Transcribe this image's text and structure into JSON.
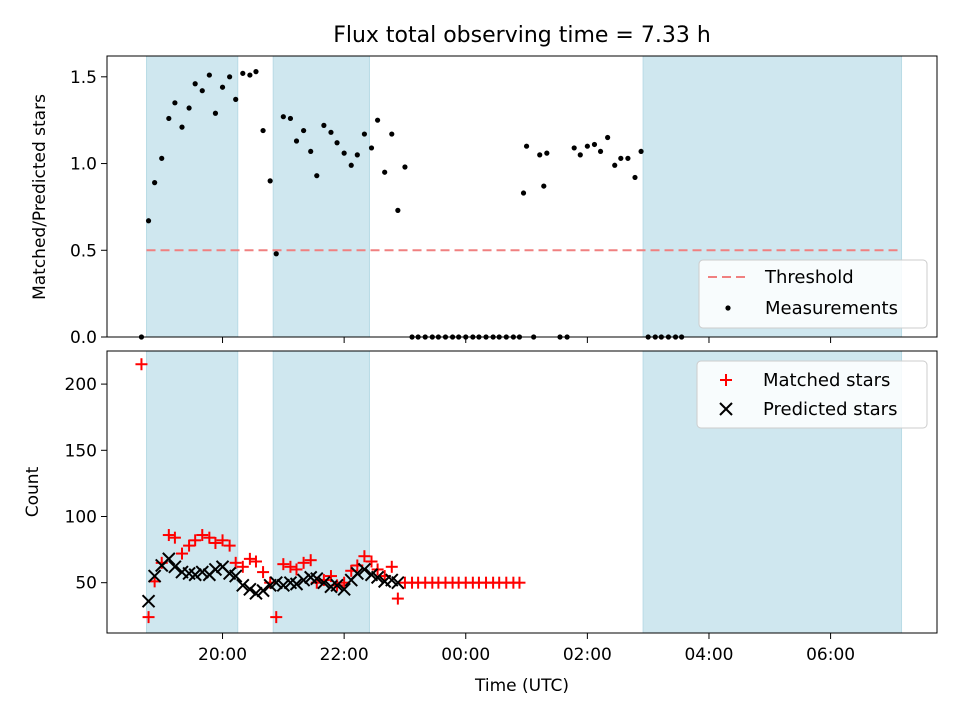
{
  "chart_data": {
    "title": "Flux total observing time = 7.33 h",
    "x_axis": {
      "label": "Time (UTC)",
      "range_hours_utc": [
        18.1,
        7.75
      ],
      "ticks": [
        "20:00",
        "22:00",
        "00:00",
        "02:00",
        "04:00",
        "06:00"
      ]
    },
    "observing_windows_utc": [
      [
        "18:45",
        "20:15"
      ],
      [
        "20:50",
        "22:25"
      ],
      [
        "02:55",
        "07:10"
      ]
    ],
    "window_color": "#cfe7ef",
    "panels": [
      {
        "type": "scatter",
        "ylabel": "Matched/Predicted stars",
        "ylim": [
          0,
          1.62
        ],
        "yticks": [
          "0.0",
          "0.5",
          "1.0",
          "1.5"
        ],
        "threshold": 0.5,
        "legend": {
          "position": "lower-right",
          "entries": [
            {
              "label": "Threshold",
              "style": "dashed-line",
              "color": "#f08080"
            },
            {
              "label": "Measurements",
              "style": "dot",
              "color": "#000000"
            }
          ]
        },
        "series": [
          {
            "name": "Measurements",
            "color": "#000000",
            "points": [
              [
                "18:40",
                0.0
              ],
              [
                "18:47",
                0.67
              ],
              [
                "18:53",
                0.89
              ],
              [
                "19:00",
                1.03
              ],
              [
                "19:07",
                1.26
              ],
              [
                "19:13",
                1.35
              ],
              [
                "19:20",
                1.21
              ],
              [
                "19:27",
                1.32
              ],
              [
                "19:33",
                1.46
              ],
              [
                "19:40",
                1.42
              ],
              [
                "19:47",
                1.51
              ],
              [
                "19:53",
                1.29
              ],
              [
                "20:00",
                1.44
              ],
              [
                "20:07",
                1.5
              ],
              [
                "20:13",
                1.37
              ],
              [
                "20:20",
                1.52
              ],
              [
                "20:27",
                1.51
              ],
              [
                "20:33",
                1.53
              ],
              [
                "20:40",
                1.19
              ],
              [
                "20:47",
                0.9
              ],
              [
                "20:53",
                0.48
              ],
              [
                "21:00",
                1.27
              ],
              [
                "21:07",
                1.26
              ],
              [
                "21:13",
                1.13
              ],
              [
                "21:20",
                1.19
              ],
              [
                "21:27",
                1.07
              ],
              [
                "21:33",
                0.93
              ],
              [
                "21:40",
                1.22
              ],
              [
                "21:47",
                1.18
              ],
              [
                "21:53",
                1.12
              ],
              [
                "22:00",
                1.06
              ],
              [
                "22:07",
                0.99
              ],
              [
                "22:13",
                1.05
              ],
              [
                "22:20",
                1.17
              ],
              [
                "22:27",
                1.09
              ],
              [
                "22:33",
                1.25
              ],
              [
                "22:40",
                0.95
              ],
              [
                "22:47",
                1.17
              ],
              [
                "22:53",
                0.73
              ],
              [
                "23:00",
                0.98
              ],
              [
                "23:07",
                0.0
              ],
              [
                "23:13",
                0.0
              ],
              [
                "23:20",
                0.0
              ],
              [
                "23:27",
                0.0
              ],
              [
                "23:33",
                0.0
              ],
              [
                "23:40",
                0.0
              ],
              [
                "23:47",
                0.0
              ],
              [
                "23:53",
                0.0
              ],
              [
                "00:00",
                0.0
              ],
              [
                "00:07",
                0.0
              ],
              [
                "00:13",
                0.0
              ],
              [
                "00:20",
                0.0
              ],
              [
                "00:27",
                0.0
              ],
              [
                "00:33",
                0.0
              ],
              [
                "00:40",
                0.0
              ],
              [
                "00:47",
                0.0
              ],
              [
                "00:53",
                0.0
              ],
              [
                "00:57",
                0.83
              ],
              [
                "01:00",
                1.1
              ],
              [
                "01:07",
                0.0
              ],
              [
                "01:13",
                1.05
              ],
              [
                "01:17",
                0.87
              ],
              [
                "01:20",
                1.06
              ],
              [
                "01:33",
                0.0
              ],
              [
                "01:40",
                0.0
              ],
              [
                "01:47",
                1.09
              ],
              [
                "01:53",
                1.05
              ],
              [
                "02:00",
                1.1
              ],
              [
                "02:07",
                1.11
              ],
              [
                "02:13",
                1.07
              ],
              [
                "02:20",
                1.15
              ],
              [
                "02:27",
                0.99
              ],
              [
                "02:33",
                1.03
              ],
              [
                "02:40",
                1.03
              ],
              [
                "02:47",
                0.92
              ],
              [
                "02:53",
                1.07
              ],
              [
                "03:00",
                0.0
              ],
              [
                "03:07",
                0.0
              ],
              [
                "03:13",
                0.0
              ],
              [
                "03:20",
                0.0
              ],
              [
                "03:27",
                0.0
              ],
              [
                "03:33",
                0.0
              ]
            ]
          }
        ]
      },
      {
        "type": "scatter",
        "ylabel": "Count",
        "ylim": [
          12,
          225
        ],
        "yticks": [
          "50",
          "100",
          "150",
          "200"
        ],
        "legend": {
          "position": "upper-right",
          "entries": [
            {
              "label": "Matched stars",
              "marker": "+",
              "color": "#ff0000"
            },
            {
              "label": "Predicted stars",
              "marker": "x",
              "color": "#000000"
            }
          ]
        },
        "series": [
          {
            "name": "Matched stars",
            "marker": "+",
            "color": "#ff0000",
            "points": [
              [
                "18:40",
                215
              ],
              [
                "18:47",
                24
              ],
              [
                "18:53",
                51
              ],
              [
                "19:00",
                65
              ],
              [
                "19:07",
                86
              ],
              [
                "19:13",
                84
              ],
              [
                "19:20",
                72
              ],
              [
                "19:27",
                78
              ],
              [
                "19:33",
                82
              ],
              [
                "19:40",
                86
              ],
              [
                "19:47",
                84
              ],
              [
                "19:53",
                80
              ],
              [
                "20:00",
                82
              ],
              [
                "20:07",
                78
              ],
              [
                "20:13",
                65
              ],
              [
                "20:20",
                62
              ],
              [
                "20:27",
                68
              ],
              [
                "20:33",
                66
              ],
              [
                "20:40",
                58
              ],
              [
                "20:47",
                50
              ],
              [
                "20:53",
                24
              ],
              [
                "21:00",
                64
              ],
              [
                "21:07",
                62
              ],
              [
                "21:13",
                60
              ],
              [
                "21:20",
                65
              ],
              [
                "21:27",
                67
              ],
              [
                "21:33",
                50
              ],
              [
                "21:40",
                52
              ],
              [
                "21:47",
                55
              ],
              [
                "21:53",
                48
              ],
              [
                "22:00",
                50
              ],
              [
                "22:07",
                59
              ],
              [
                "22:13",
                63
              ],
              [
                "22:20",
                70
              ],
              [
                "22:27",
                66
              ],
              [
                "22:33",
                60
              ],
              [
                "22:40",
                55
              ],
              [
                "22:47",
                62
              ],
              [
                "22:53",
                38
              ],
              [
                "23:00",
                50
              ],
              [
                "23:07",
                50
              ],
              [
                "23:13",
                50
              ],
              [
                "23:20",
                50
              ],
              [
                "23:27",
                50
              ],
              [
                "23:33",
                50
              ],
              [
                "23:40",
                50
              ],
              [
                "23:47",
                50
              ],
              [
                "23:53",
                50
              ],
              [
                "00:00",
                50
              ],
              [
                "00:07",
                50
              ],
              [
                "00:13",
                50
              ],
              [
                "00:20",
                50
              ],
              [
                "00:27",
                50
              ],
              [
                "00:33",
                50
              ],
              [
                "00:40",
                50
              ],
              [
                "00:47",
                50
              ],
              [
                "00:53",
                50
              ]
            ]
          },
          {
            "name": "Predicted stars",
            "marker": "x",
            "color": "#000000",
            "points": [
              [
                "18:47",
                36
              ],
              [
                "18:53",
                55
              ],
              [
                "19:00",
                63
              ],
              [
                "19:07",
                68
              ],
              [
                "19:13",
                62
              ],
              [
                "19:20",
                58
              ],
              [
                "19:27",
                57
              ],
              [
                "19:33",
                56
              ],
              [
                "19:40",
                58
              ],
              [
                "19:47",
                56
              ],
              [
                "19:53",
                60
              ],
              [
                "20:00",
                62
              ],
              [
                "20:07",
                57
              ],
              [
                "20:13",
                55
              ],
              [
                "20:20",
                48
              ],
              [
                "20:27",
                45
              ],
              [
                "20:33",
                42
              ],
              [
                "20:40",
                44
              ],
              [
                "20:47",
                48
              ],
              [
                "20:53",
                50
              ],
              [
                "21:00",
                48
              ],
              [
                "21:07",
                50
              ],
              [
                "21:13",
                49
              ],
              [
                "21:20",
                52
              ],
              [
                "21:27",
                54
              ],
              [
                "21:33",
                53
              ],
              [
                "21:40",
                50
              ],
              [
                "21:47",
                47
              ],
              [
                "21:53",
                48
              ],
              [
                "22:00",
                45
              ],
              [
                "22:07",
                52
              ],
              [
                "22:13",
                57
              ],
              [
                "22:20",
                60
              ],
              [
                "22:27",
                56
              ],
              [
                "22:33",
                54
              ],
              [
                "22:40",
                51
              ],
              [
                "22:47",
                52
              ],
              [
                "22:53",
                50
              ]
            ]
          }
        ]
      }
    ]
  }
}
